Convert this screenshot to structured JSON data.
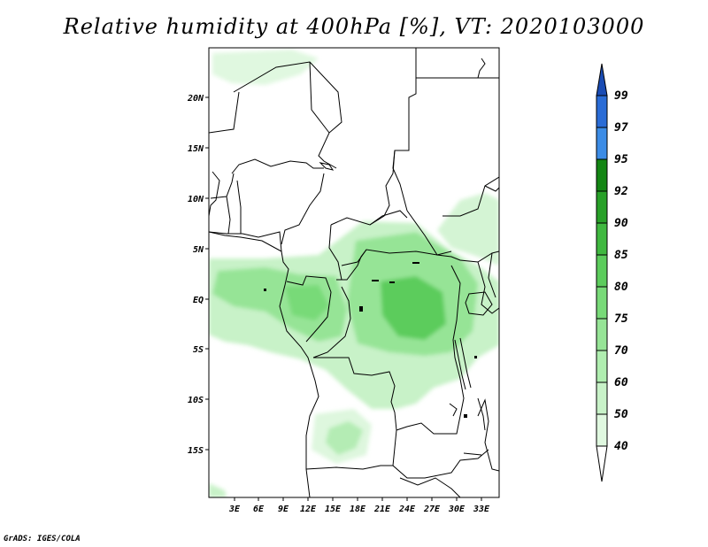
{
  "title": "Relative humidity at 400hPa [%], VT: 2020103000",
  "credit": "GrADS: IGES/COLA",
  "map": {
    "lat_ticks": [
      "20N",
      "15N",
      "10N",
      "5N",
      "EQ",
      "5S",
      "10S",
      "15S"
    ],
    "lon_ticks": [
      "3E",
      "6E",
      "9E",
      "12E",
      "15E",
      "18E",
      "21E",
      "24E",
      "27E",
      "30E",
      "33E"
    ]
  },
  "colorbar": {
    "levels": [
      "40",
      "50",
      "60",
      "70",
      "75",
      "80",
      "85",
      "90",
      "92",
      "95",
      "97",
      "99"
    ],
    "colors": [
      "#f0fcf0",
      "#e0f8e0",
      "#c8f2c8",
      "#b0eeb0",
      "#96e496",
      "#78da78",
      "#5ccc5c",
      "#40b840",
      "#28a028",
      "#148614",
      "#3c8ce6",
      "#2a6cd6",
      "#1a4cb4"
    ]
  }
}
